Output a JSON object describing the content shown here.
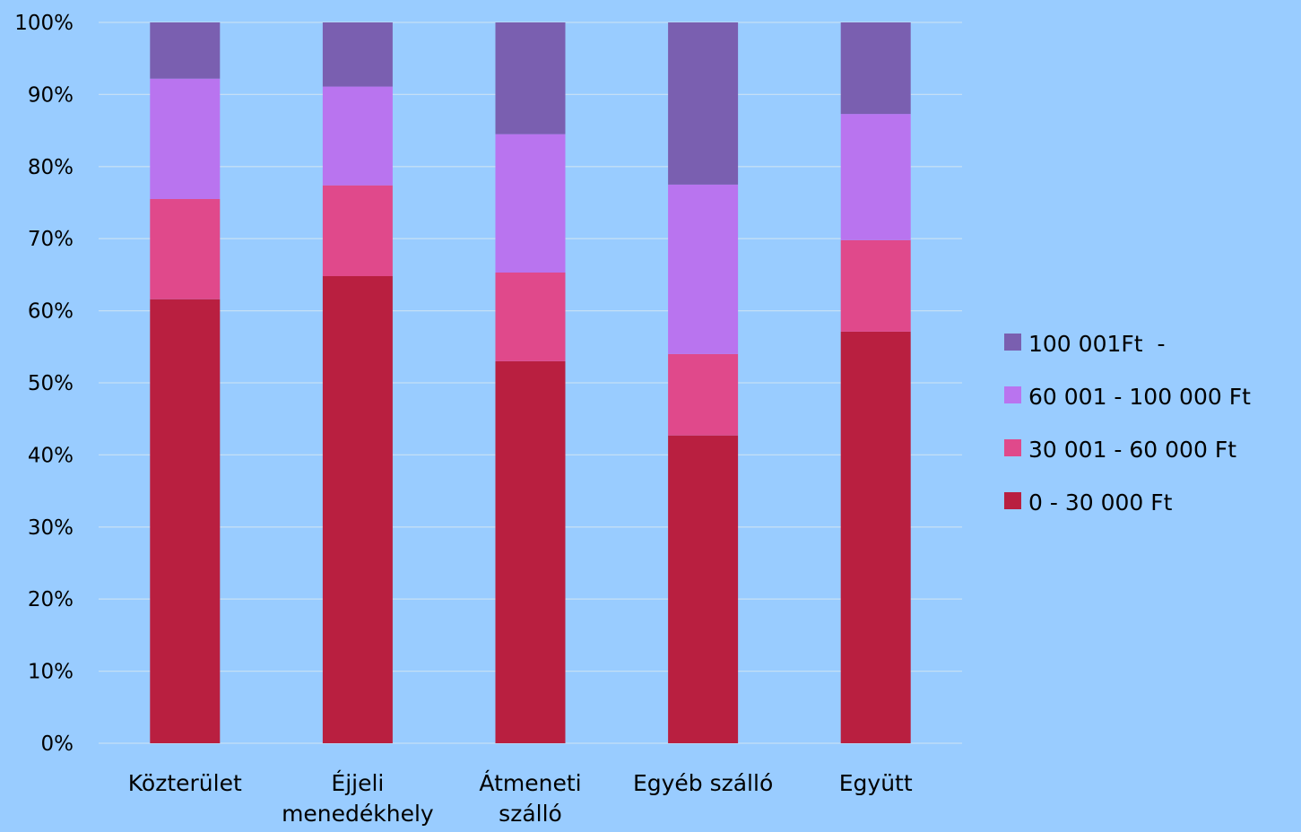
{
  "chart_data": {
    "type": "bar",
    "stacked": true,
    "percent": true,
    "categories": [
      [
        "Közterület"
      ],
      [
        "Éjjeli",
        "menedékhely"
      ],
      [
        "Átmeneti",
        "szálló"
      ],
      [
        "Egyéb szálló"
      ],
      [
        "Együtt"
      ]
    ],
    "series": [
      {
        "name": "0 - 30 000 Ft",
        "color": "#b91f40",
        "values": [
          61.6,
          64.8,
          53.0,
          42.7,
          57.1
        ]
      },
      {
        "name": "30 001 - 60 000 Ft",
        "color": "#e0498b",
        "values": [
          13.9,
          12.6,
          12.3,
          11.3,
          12.7
        ]
      },
      {
        "name": "60 001 - 100 000 Ft",
        "color": "#b974ef",
        "values": [
          16.7,
          13.7,
          19.2,
          23.5,
          17.5
        ]
      },
      {
        "name": "100 001Ft  -",
        "color": "#7a5fb0",
        "values": [
          7.8,
          8.9,
          15.5,
          22.5,
          12.7
        ]
      }
    ],
    "ylim": [
      0,
      100
    ],
    "yticks": [
      "0%",
      "10%",
      "20%",
      "30%",
      "40%",
      "50%",
      "60%",
      "70%",
      "80%",
      "90%",
      "100%"
    ],
    "grid": true,
    "legend_position": "right",
    "legend_order": [
      3,
      2,
      1,
      0
    ]
  }
}
